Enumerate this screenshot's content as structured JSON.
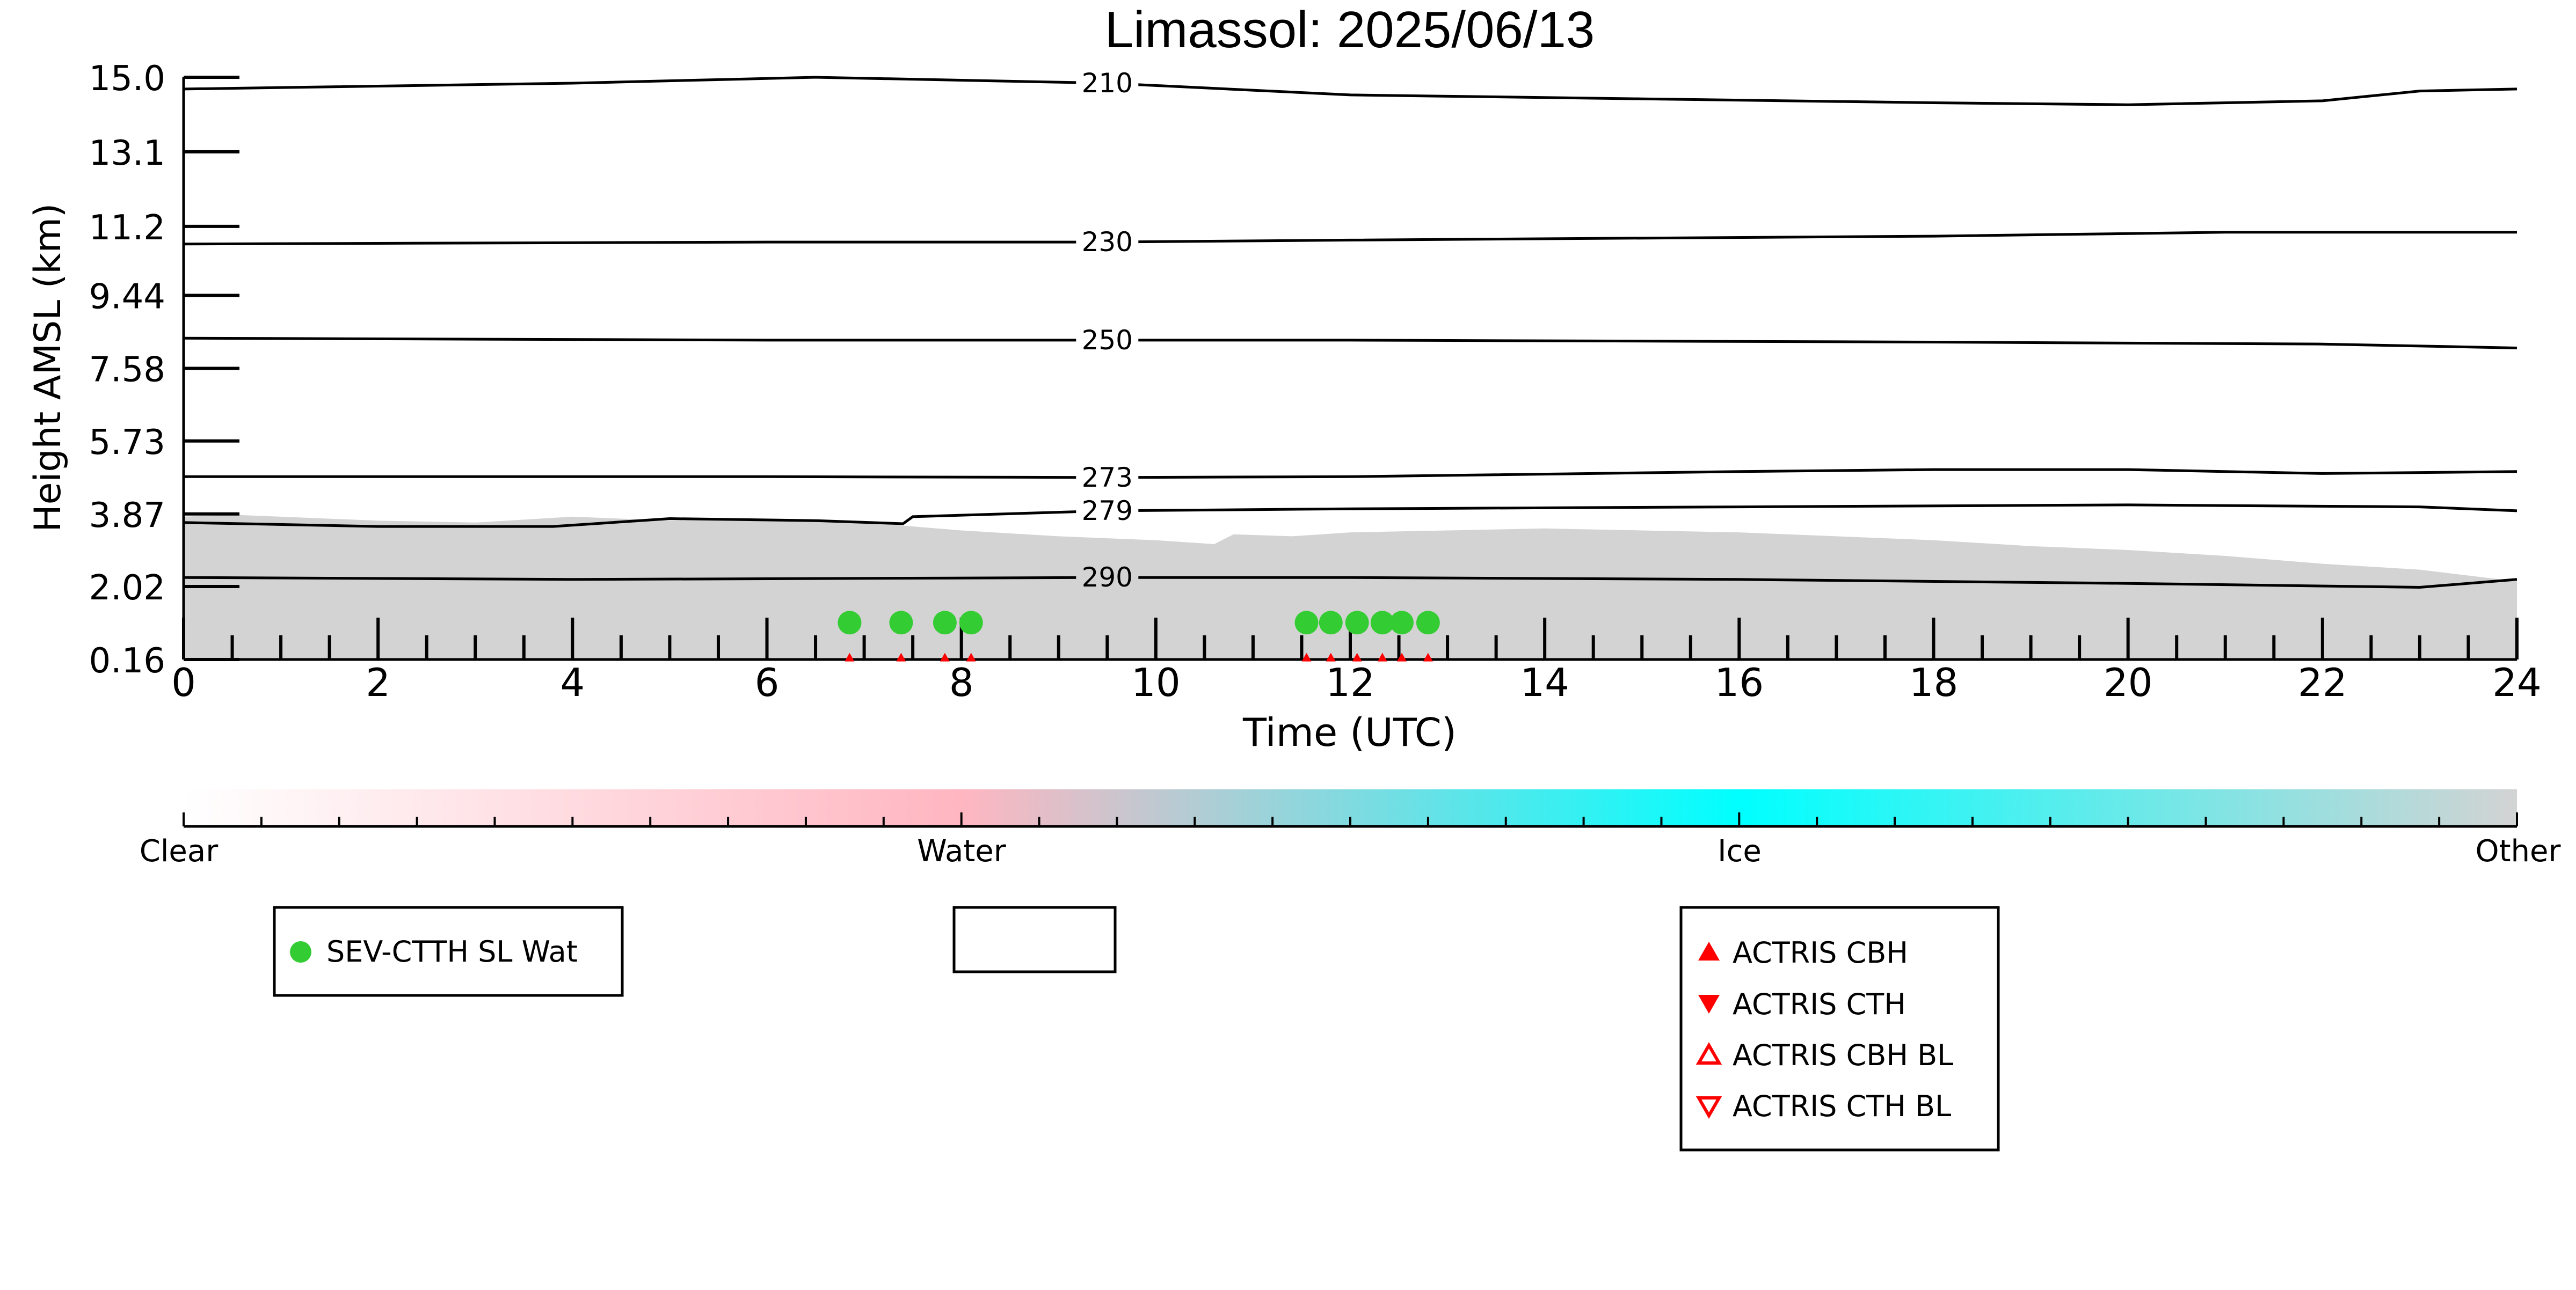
{
  "chart_data": {
    "type": "scatter",
    "title": "Limassol: 2025/06/13",
    "xlabel": "Time (UTC)",
    "ylabel": "Height AMSL (km)",
    "xlim": [
      0,
      24
    ],
    "ylim": [
      0.16,
      15.0
    ],
    "x_ticks": [
      0,
      2,
      4,
      6,
      8,
      10,
      12,
      14,
      16,
      18,
      20,
      22,
      24
    ],
    "y_ticks": [
      0.16,
      2.02,
      3.87,
      5.73,
      7.58,
      9.44,
      11.2,
      13.1,
      15.0
    ],
    "y_tick_labels": [
      "0.16",
      "2.02",
      "3.87",
      "5.73",
      "7.58",
      "9.44",
      "11.2",
      "13.1",
      "15.0"
    ],
    "grid": false,
    "cloud_mask": {
      "color": "#d3d3d3",
      "description_class": "Other",
      "top_km": [
        [
          0,
          3.8
        ],
        [
          0.5,
          3.85
        ],
        [
          1,
          3.8
        ],
        [
          2,
          3.7
        ],
        [
          3,
          3.65
        ],
        [
          4,
          3.8
        ],
        [
          5,
          3.7
        ],
        [
          6,
          3.75
        ],
        [
          7,
          3.65
        ],
        [
          8,
          3.45
        ],
        [
          9,
          3.3
        ],
        [
          10,
          3.2
        ],
        [
          10.6,
          3.1
        ],
        [
          10.8,
          3.35
        ],
        [
          11.4,
          3.3
        ],
        [
          12,
          3.4
        ],
        [
          13,
          3.45
        ],
        [
          14,
          3.5
        ],
        [
          15,
          3.45
        ],
        [
          16,
          3.4
        ],
        [
          17,
          3.3
        ],
        [
          18,
          3.2
        ],
        [
          19,
          3.05
        ],
        [
          20,
          2.95
        ],
        [
          21,
          2.8
        ],
        [
          22,
          2.6
        ],
        [
          23,
          2.45
        ],
        [
          24,
          2.15
        ]
      ]
    },
    "isotherms": [
      {
        "label": "210",
        "points": [
          [
            0,
            14.7
          ],
          [
            4,
            14.85
          ],
          [
            6.5,
            15.0
          ],
          [
            9.5,
            14.85
          ],
          [
            12,
            14.55
          ],
          [
            15,
            14.45
          ],
          [
            18,
            14.35
          ],
          [
            20,
            14.3
          ],
          [
            22,
            14.4
          ],
          [
            23,
            14.65
          ],
          [
            24,
            14.7
          ]
        ]
      },
      {
        "label": "230",
        "points": [
          [
            0,
            10.75
          ],
          [
            6,
            10.8
          ],
          [
            9.5,
            10.8
          ],
          [
            12,
            10.85
          ],
          [
            18,
            10.95
          ],
          [
            21,
            11.05
          ],
          [
            24,
            11.05
          ]
        ]
      },
      {
        "label": "250",
        "points": [
          [
            0,
            8.35
          ],
          [
            6,
            8.3
          ],
          [
            9.5,
            8.3
          ],
          [
            12,
            8.3
          ],
          [
            18,
            8.25
          ],
          [
            22,
            8.2
          ],
          [
            24,
            8.1
          ]
        ]
      },
      {
        "label": "273",
        "points": [
          [
            0,
            4.82
          ],
          [
            6,
            4.82
          ],
          [
            9.5,
            4.8
          ],
          [
            12,
            4.82
          ],
          [
            16,
            4.95
          ],
          [
            18,
            5.0
          ],
          [
            20,
            5.0
          ],
          [
            22,
            4.9
          ],
          [
            24,
            4.95
          ]
        ]
      },
      {
        "label": "279",
        "points": [
          [
            0,
            3.65
          ],
          [
            2,
            3.55
          ],
          [
            3.8,
            3.55
          ],
          [
            5,
            3.75
          ],
          [
            6.5,
            3.7
          ],
          [
            7.4,
            3.62
          ],
          [
            7.5,
            3.8
          ],
          [
            9.5,
            3.95
          ],
          [
            12,
            4.0
          ],
          [
            16,
            4.05
          ],
          [
            20,
            4.1
          ],
          [
            23,
            4.05
          ],
          [
            24,
            3.95
          ]
        ]
      },
      {
        "label": "290",
        "points": [
          [
            0,
            2.25
          ],
          [
            4,
            2.2
          ],
          [
            9.5,
            2.25
          ],
          [
            12,
            2.25
          ],
          [
            16,
            2.2
          ],
          [
            20,
            2.1
          ],
          [
            23,
            2.0
          ],
          [
            24,
            2.2
          ]
        ]
      }
    ],
    "series": [
      {
        "name": "SEV-CTTH SL Wat",
        "color": "#33cc33",
        "marker": "circle",
        "x": [
          6.85,
          7.38,
          7.83,
          8.1,
          11.55,
          11.8,
          12.07,
          12.33,
          12.53,
          12.8
        ],
        "y": [
          1.1,
          1.1,
          1.1,
          1.1,
          1.1,
          1.1,
          1.1,
          1.1,
          1.1,
          1.1
        ]
      },
      {
        "name": "ACTRIS CBH",
        "color": "#ff0000",
        "marker": "triangle-up",
        "x": [
          6.85,
          7.38,
          7.83,
          8.1,
          11.55,
          11.8,
          12.07,
          12.33,
          12.53,
          12.8
        ],
        "y": [
          0.22,
          0.22,
          0.22,
          0.22,
          0.22,
          0.22,
          0.22,
          0.22,
          0.22,
          0.22
        ]
      },
      {
        "name": "ACTRIS CTH",
        "color": "#ff0000",
        "marker": "triangle-down",
        "x": [],
        "y": []
      },
      {
        "name": "ACTRIS CBH BL",
        "color": "#ff0000",
        "marker": "triangle-up-open",
        "x": [],
        "y": []
      },
      {
        "name": "ACTRIS CTH BL",
        "color": "#ff0000",
        "marker": "triangle-down-open",
        "x": [],
        "y": []
      }
    ],
    "colorbar": {
      "labels": [
        "Clear",
        "Water",
        "Ice",
        "Other"
      ],
      "colors": [
        "#ffffff",
        "#ffb6c1",
        "#00ffff",
        "#d3d3d3"
      ]
    },
    "legends": [
      {
        "entries": [
          "SEV-CTTH SL Wat"
        ]
      },
      {
        "entries": []
      },
      {
        "entries": [
          "ACTRIS CBH",
          "ACTRIS CTH",
          "ACTRIS CBH BL",
          "ACTRIS CTH BL"
        ]
      }
    ]
  }
}
